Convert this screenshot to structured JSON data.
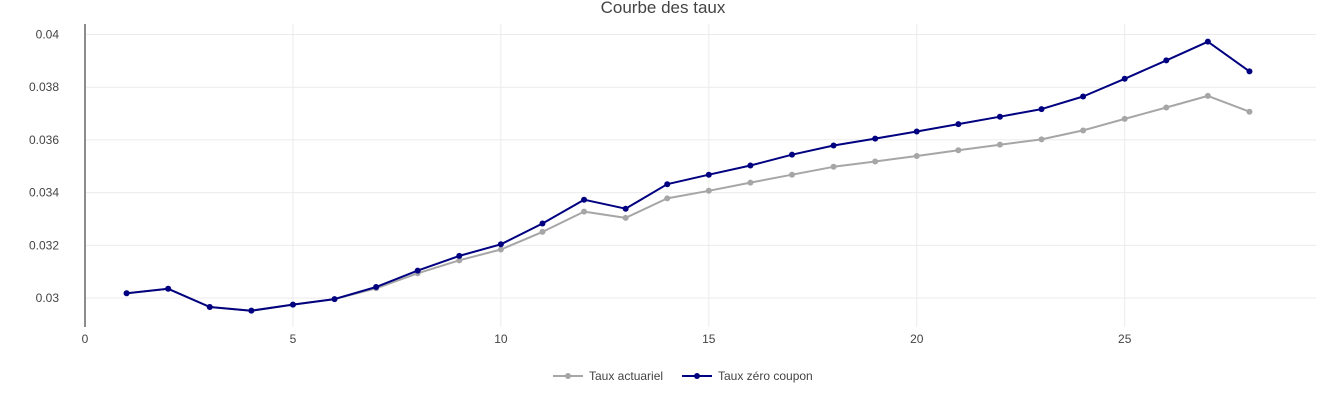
{
  "chart_data": {
    "type": "line",
    "title": "Courbe des taux",
    "xlim": [
      0,
      29.6
    ],
    "ylim": [
      0.0289,
      0.0404
    ],
    "x_ticks": [
      0,
      5,
      10,
      15,
      20,
      25
    ],
    "x_tick_labels": [
      "0",
      "5",
      "10",
      "15",
      "20",
      "25"
    ],
    "y_ticks": [
      0.03,
      0.032,
      0.034,
      0.036,
      0.038,
      0.04
    ],
    "y_tick_labels": [
      "0.03",
      "0.032",
      "0.034",
      "0.036",
      "0.038",
      "0.04"
    ],
    "grid": true,
    "legend_position": "bottom-center",
    "x": [
      1,
      2,
      3,
      4,
      5,
      6,
      7,
      8,
      9,
      10,
      11,
      12,
      13,
      14,
      15,
      16,
      17,
      18,
      19,
      20,
      21,
      22,
      23,
      24,
      25,
      26,
      27,
      28
    ],
    "series": [
      {
        "name": "Taux actuariel",
        "color": "#a6a6a6",
        "values": [
          0.03018,
          0.03035,
          0.02966,
          0.02952,
          0.02975,
          0.02996,
          0.03037,
          0.03094,
          0.03143,
          0.03184,
          0.03251,
          0.03328,
          0.03304,
          0.03378,
          0.03407,
          0.03438,
          0.03468,
          0.03498,
          0.03518,
          0.03539,
          0.03561,
          0.03582,
          0.03602,
          0.03636,
          0.0368,
          0.03723,
          0.03767,
          0.03707
        ]
      },
      {
        "name": "Taux zéro coupon",
        "color": "#000080",
        "values": [
          0.03018,
          0.03035,
          0.02966,
          0.02952,
          0.02975,
          0.02996,
          0.03042,
          0.03104,
          0.0316,
          0.03204,
          0.03283,
          0.03373,
          0.03339,
          0.03432,
          0.03468,
          0.03503,
          0.03544,
          0.03579,
          0.03605,
          0.03632,
          0.0366,
          0.03688,
          0.03717,
          0.03765,
          0.03832,
          0.03902,
          0.03973,
          0.0386
        ]
      }
    ]
  }
}
